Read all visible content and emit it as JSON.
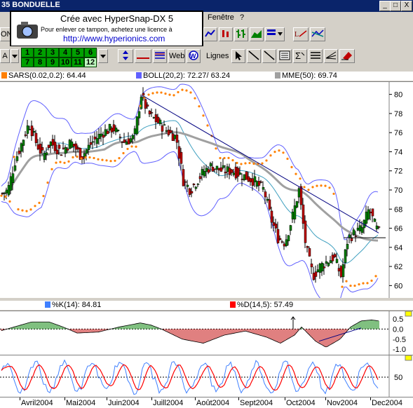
{
  "window": {
    "title": "35  BONDUELLE",
    "controls": [
      "_",
      "□",
      "X"
    ]
  },
  "menu": {
    "items": [
      "Fenêtre",
      "?"
    ]
  },
  "stamp": {
    "title": "Crée avec HyperSnap-DX 5",
    "subtitle": "Pour enlever ce tampon, achetez une licence à",
    "url": "http://www.hyperionics.com"
  },
  "toolbar": {
    "on_label": "ON",
    "a_label": "A",
    "web_label": "Web",
    "lignes_label": "Lignes",
    "number_buttons": [
      "1",
      "2",
      "3",
      "4",
      "5",
      "6",
      "7",
      "8",
      "9",
      "10",
      "11",
      "12"
    ],
    "selected_number": "12"
  },
  "indicators": {
    "sars": "SARS(0.02,0.2): 64.44",
    "boll": "BOLL(20,2): 72.27/ 63.24",
    "mme": "MME(50): 69.74",
    "k": "%K(14): 84.81",
    "d": "%D(14,5): 57.49"
  },
  "colors": {
    "sars": "#ff8000",
    "boll": "#6060ff",
    "mme": "#a0a0a0",
    "k": "#4080ff",
    "d": "#ff0000",
    "candle_up": "#008000",
    "candle_down": "#c00000",
    "trend": "#000080"
  },
  "price_axis": {
    "ticks": [
      "80",
      "78",
      "76",
      "74",
      "72",
      "70",
      "68",
      "66",
      "64",
      "62",
      "60"
    ],
    "min": 59,
    "max": 81
  },
  "macd_axis": {
    "ticks": [
      "0.5",
      "0.0",
      "-0.5",
      "-1.0"
    ]
  },
  "stoch_axis": {
    "ticks": [
      "50"
    ]
  },
  "dates": [
    "Avril2004",
    "Mai2004",
    "Juin2004",
    "Juill2004",
    "Août2004",
    "Sept2004",
    "Oct2004",
    "Nov2004",
    "Dec2004"
  ],
  "chart_data": {
    "type": "line",
    "title": "",
    "x": [
      "Avril2004",
      "Mai2004",
      "Juin2004",
      "Juill2004",
      "Août2004",
      "Sept2004",
      "Oct2004",
      "Nov2004",
      "Dec2004"
    ],
    "ylim": [
      59,
      81
    ],
    "series": [
      {
        "name": "BOLL(20,2)",
        "values": [
          74,
          75,
          77.5,
          76.5,
          72,
          71.5,
          65,
          63,
          66
        ]
      },
      {
        "name": "MME(50)",
        "values": [
          72,
          74,
          75,
          75.5,
          72.5,
          72,
          69,
          66,
          66
        ]
      },
      {
        "name": "SARS(0.02,0.2)",
        "values": [
          70,
          73,
          75,
          77,
          70,
          72.5,
          70,
          64,
          67
        ]
      }
    ],
    "close": [
      69.5,
      76,
      73.5,
      80,
      71,
      72,
      64.5,
      61,
      65.5
    ]
  }
}
